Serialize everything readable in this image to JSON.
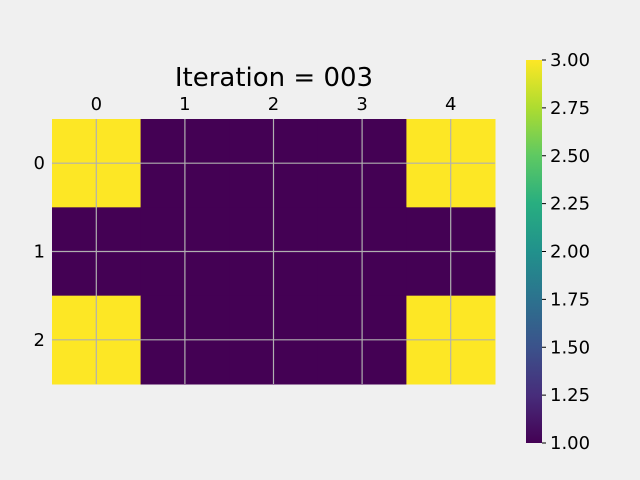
{
  "chart_data": {
    "type": "heatmap",
    "title": "Iteration = 003",
    "x_ticks": [
      "0",
      "1",
      "2",
      "3",
      "4"
    ],
    "y_ticks": [
      "0",
      "1",
      "2"
    ],
    "values": [
      [
        3,
        1,
        1,
        1,
        3
      ],
      [
        1,
        1,
        1,
        1,
        1
      ],
      [
        3,
        1,
        1,
        1,
        3
      ]
    ],
    "colormap": "viridis",
    "colormap_low": "#440154",
    "colormap_high": "#fde725",
    "vmin": 1.0,
    "vmax": 3.0,
    "colorbar_ticks": [
      "1.00",
      "1.25",
      "1.50",
      "1.75",
      "2.00",
      "2.25",
      "2.50",
      "2.75",
      "3.00"
    ],
    "x_axis_position": "top",
    "grid": true,
    "grid_color": "#b0b0b0"
  }
}
